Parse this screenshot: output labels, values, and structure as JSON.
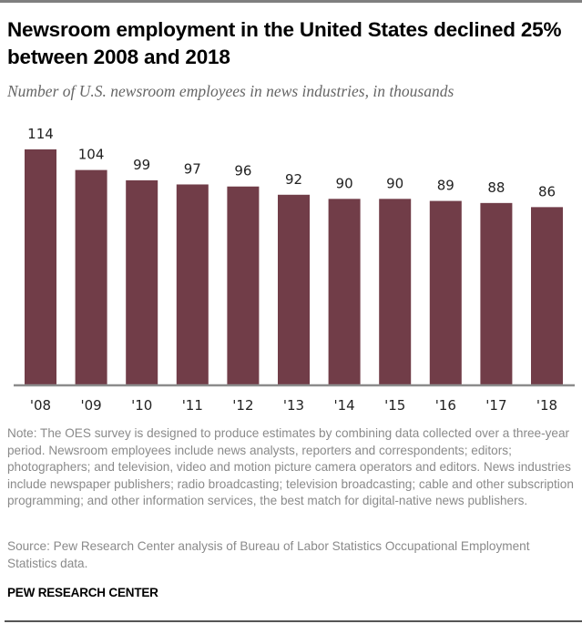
{
  "header": {
    "title": "Newsroom employment in the United States declined 25% between 2008 and 2018",
    "subtitle": "Number of U.S. newsroom employees in news industries, in thousands"
  },
  "footer": {
    "note": "Note: The OES survey is designed to produce estimates by combining data collected over a three-year period. Newsroom employees include news analysts, reporters and correspondents; editors; photographers; and television, video and motion picture camera operators and editors. News industries include newspaper publishers; radio broadcasting; television broadcasting; cable and other subscription programming; and other information services, the best match for digital-native news publishers.",
    "source": "Source: Pew Research Center analysis of Bureau of Labor Statistics Occupational Employment Statistics data.",
    "brand": "PEW RESEARCH CENTER"
  },
  "colors": {
    "bar": "#713d48",
    "axis": "#8c8c8c"
  },
  "chart_data": {
    "type": "bar",
    "title": "Newsroom employment in the United States declined 25% between 2008 and 2018",
    "subtitle": "Number of U.S. newsroom employees in news industries, in thousands",
    "xlabel": "",
    "ylabel": "",
    "categories": [
      "'08",
      "'09",
      "'10",
      "'11",
      "'12",
      "'13",
      "'14",
      "'15",
      "'16",
      "'17",
      "'18"
    ],
    "values": [
      114,
      104,
      99,
      97,
      96,
      92,
      90,
      90,
      89,
      88,
      86
    ],
    "data_labels": [
      "114",
      "104",
      "99",
      "97",
      "96",
      "92",
      "90",
      "90",
      "89",
      "88",
      "86"
    ],
    "ylim": [
      0,
      114
    ],
    "grid": false,
    "legend": "none"
  }
}
